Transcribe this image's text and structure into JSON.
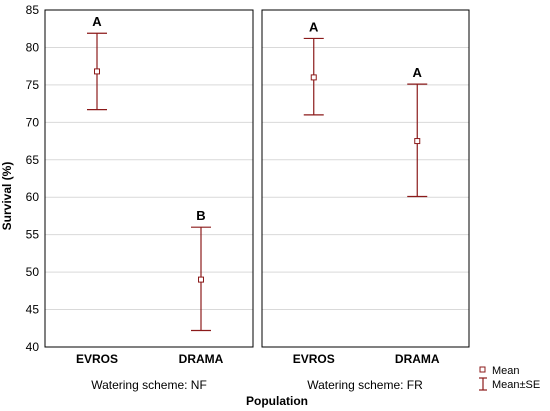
{
  "chart_data": {
    "type": "scatter",
    "ylabel": "Survival (%)",
    "xlabel": "Population",
    "ylim": [
      40,
      85
    ],
    "yticks": [
      40,
      45,
      50,
      55,
      60,
      65,
      70,
      75,
      80,
      85
    ],
    "grid": true,
    "legend": {
      "placement": "bottom-right",
      "entries": [
        "Mean",
        "Mean±SE"
      ]
    },
    "colors": {
      "series": "#8B1A1A",
      "grid": "#d9d9d9",
      "frame": "#000000"
    },
    "panels": [
      {
        "label": "Watering scheme: NF",
        "categories": [
          "EVROS",
          "DRAMA"
        ],
        "mean": [
          76.8,
          49.0
        ],
        "se_low": [
          71.7,
          42.2
        ],
        "se_high": [
          81.9,
          56.0
        ],
        "group_letters": [
          "A",
          "B"
        ]
      },
      {
        "label": "Watering scheme: FR",
        "categories": [
          "EVROS",
          "DRAMA"
        ],
        "mean": [
          76.0,
          67.5
        ],
        "se_low": [
          71.0,
          60.1
        ],
        "se_high": [
          81.2,
          75.1
        ],
        "group_letters": [
          "A",
          "A"
        ]
      }
    ]
  }
}
